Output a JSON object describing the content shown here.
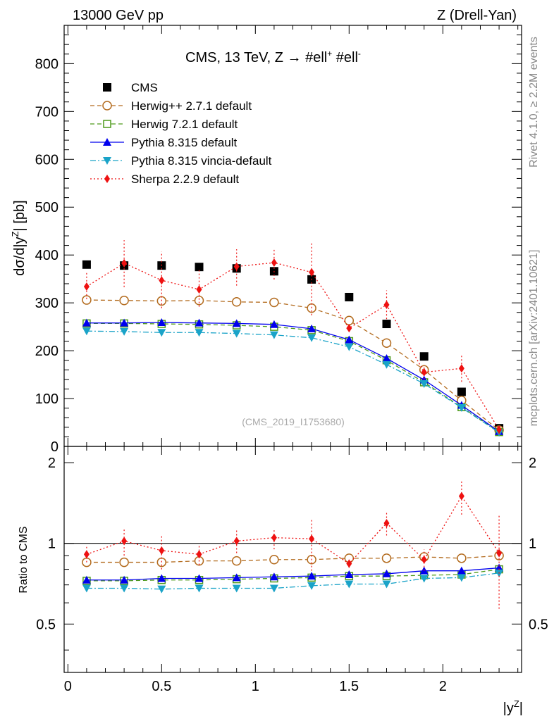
{
  "header": {
    "left": "13000 GeV pp",
    "right": "Z (Drell-Yan)"
  },
  "side": {
    "rivet": "Rivet 4.1.0, ≥ 2.2M events",
    "mcplots": "mcplots.cern.ch [arXiv:2401.10621]"
  },
  "chart_data": [
    {
      "type": "scatter",
      "panel": "main",
      "title": "CMS, 13 TeV, Z →  #ell",
      "title_sup1": "+",
      "title_mid": " #ell",
      "title_sup2": "-",
      "ylabel": "dσ/d|y",
      "ylabel_sup": "Z",
      "ylabel_tail": "| [pb]",
      "watermark": "(CMS_2019_I1753680)",
      "xlim": [
        -0.02,
        2.42
      ],
      "ylim": [
        0,
        880
      ],
      "yticks": [
        0,
        100,
        200,
        300,
        400,
        500,
        600,
        700,
        800
      ],
      "ytick_labels": [
        "0",
        "100",
        "200",
        "300",
        "400",
        "500",
        "600",
        "700",
        "800"
      ],
      "x": [
        0.1,
        0.3,
        0.5,
        0.7,
        0.9,
        1.1,
        1.3,
        1.5,
        1.7,
        1.9,
        2.1,
        2.3
      ],
      "series": [
        {
          "name": "CMS",
          "color": "#000000",
          "marker": "square",
          "line": "none",
          "values": [
            380,
            378,
            378,
            375,
            372,
            366,
            349,
            312,
            256,
            188,
            114,
            38
          ]
        },
        {
          "name": "Herwig++ 2.7.1 default",
          "color": "#b36b1e",
          "marker": "open-circle",
          "line": "dash",
          "values": [
            306,
            305,
            304,
            305,
            302,
            301,
            289,
            263,
            216,
            160,
            96,
            34
          ]
        },
        {
          "name": "Herwig 7.2.1 default",
          "color": "#4d9a1a",
          "marker": "open-square",
          "line": "dash",
          "values": [
            257,
            257,
            256,
            255,
            253,
            250,
            243,
            220,
            180,
            134,
            82,
            30
          ]
        },
        {
          "name": "Pythia 8.315 default",
          "color": "#0000ee",
          "marker": "triangle-up",
          "line": "solid",
          "values": [
            258,
            258,
            259,
            258,
            257,
            255,
            246,
            223,
            184,
            139,
            86,
            31
          ]
        },
        {
          "name": "Pythia 8.315 vincia-default",
          "color": "#1aa3c8",
          "marker": "triangle-down",
          "line": "dashdot",
          "values": [
            241,
            240,
            238,
            238,
            236,
            233,
            227,
            208,
            171,
            131,
            81,
            29
          ]
        },
        {
          "name": "Sherpa 2.2.9 default",
          "color": "#ee1111",
          "marker": "diamond",
          "line": "dot",
          "values": [
            334,
            383,
            347,
            328,
            376,
            384,
            364,
            247,
            296,
            155,
            163,
            35
          ],
          "err_low": [
            26,
            50,
            58,
            36,
            40,
            35,
            90,
            0,
            30,
            15,
            28,
            10
          ],
          "err_high": [
            30,
            48,
            60,
            42,
            36,
            28,
            62,
            0,
            30,
            15,
            28,
            10
          ]
        }
      ]
    },
    {
      "type": "scatter",
      "panel": "ratio",
      "ylabel": "Ratio to CMS",
      "xlabel": "|y",
      "xlabel_sup": "Z",
      "xlabel_tail": "|",
      "xlim": [
        -0.02,
        2.42
      ],
      "ylim": [
        0.33,
        2.3
      ],
      "yticks": [
        0.5,
        1,
        2
      ],
      "ytick_labels": [
        "0.5",
        "1",
        "2"
      ],
      "xticks": [
        0,
        0.5,
        1,
        1.5,
        2
      ],
      "xtick_labels": [
        "0",
        "0.5",
        "1",
        "1.5",
        "2"
      ],
      "reference_line": 1,
      "x": [
        0.1,
        0.3,
        0.5,
        0.7,
        0.9,
        1.1,
        1.3,
        1.5,
        1.7,
        1.9,
        2.1,
        2.3
      ],
      "series": [
        {
          "name": "Herwig++ 2.7.1 default",
          "values": [
            0.85,
            0.85,
            0.85,
            0.86,
            0.86,
            0.87,
            0.87,
            0.88,
            0.88,
            0.89,
            0.88,
            0.9
          ]
        },
        {
          "name": "Herwig 7.2.1 default",
          "values": [
            0.725,
            0.725,
            0.73,
            0.73,
            0.735,
            0.74,
            0.745,
            0.755,
            0.755,
            0.76,
            0.765,
            0.8
          ]
        },
        {
          "name": "Pythia 8.315 default",
          "values": [
            0.73,
            0.73,
            0.74,
            0.74,
            0.745,
            0.75,
            0.755,
            0.765,
            0.77,
            0.79,
            0.79,
            0.81
          ]
        },
        {
          "name": "Pythia 8.315 vincia-default",
          "values": [
            0.68,
            0.68,
            0.675,
            0.68,
            0.68,
            0.68,
            0.695,
            0.705,
            0.705,
            0.74,
            0.745,
            0.775
          ]
        },
        {
          "name": "Sherpa 2.2.9 default",
          "values": [
            0.91,
            1.02,
            0.94,
            0.91,
            1.02,
            1.05,
            1.04,
            0.84,
            1.19,
            0.87,
            1.5,
            0.92
          ],
          "err_low": [
            0.06,
            0.12,
            0.14,
            0.08,
            0.1,
            0.1,
            0.25,
            0.03,
            0.12,
            0.08,
            0.22,
            0.35
          ],
          "err_high": [
            0.06,
            0.12,
            0.14,
            0.08,
            0.1,
            0.08,
            0.2,
            0.03,
            0.12,
            0.08,
            0.22,
            0.35
          ]
        }
      ]
    }
  ]
}
